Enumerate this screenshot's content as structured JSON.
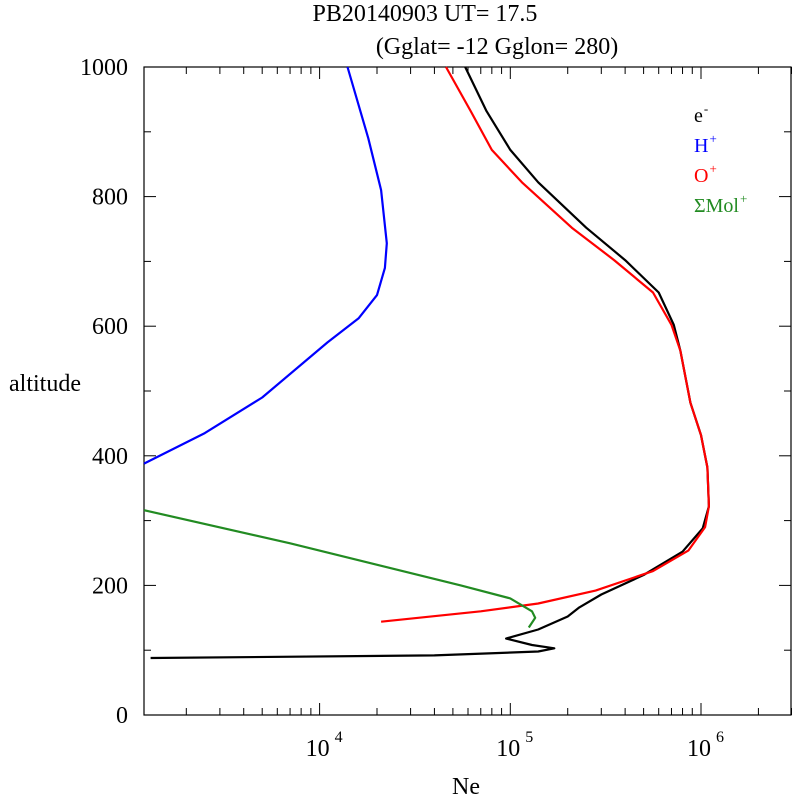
{
  "chart_data": {
    "type": "line",
    "title": "PB20140903   UT=  17.5",
    "subtitle": "(Gglat= -12   Gglon=  280)",
    "xlabel": "Ne",
    "ylabel": "altitude",
    "x_scale": "log",
    "xlim": [
      1200,
      3000000
    ],
    "ylim": [
      0,
      1000
    ],
    "y_ticks": [
      0,
      200,
      400,
      600,
      800,
      1000
    ],
    "x_ticks": [
      {
        "value": 10000,
        "base": "10",
        "exp": "4"
      },
      {
        "value": 100000,
        "base": "10",
        "exp": "5"
      },
      {
        "value": 1000000,
        "base": "10",
        "exp": "6"
      }
    ],
    "legend_position": "top-right",
    "series": [
      {
        "name": "e",
        "name_sup": "-",
        "color": "#000000",
        "points": [
          [
            1300,
            88
          ],
          [
            40000,
            92
          ],
          [
            140000,
            98
          ],
          [
            170000,
            103
          ],
          [
            130000,
            108
          ],
          [
            95000,
            118
          ],
          [
            140000,
            132
          ],
          [
            200000,
            152
          ],
          [
            230000,
            166
          ],
          [
            300000,
            186
          ],
          [
            500000,
            216
          ],
          [
            800000,
            252
          ],
          [
            1020000,
            288
          ],
          [
            1100000,
            322
          ],
          [
            1080000,
            382
          ],
          [
            1000000,
            432
          ],
          [
            880000,
            482
          ],
          [
            780000,
            562
          ],
          [
            720000,
            602
          ],
          [
            600000,
            652
          ],
          [
            400000,
            702
          ],
          [
            250000,
            752
          ],
          [
            140000,
            822
          ],
          [
            100000,
            872
          ],
          [
            75000,
            932
          ],
          [
            58000,
            1000
          ]
        ]
      },
      {
        "name": "H",
        "name_sup": "+",
        "color": "#0000ff",
        "points": [
          [
            1200,
            388
          ],
          [
            2500,
            435
          ],
          [
            5000,
            490
          ],
          [
            11000,
            575
          ],
          [
            16000,
            612
          ],
          [
            20000,
            648
          ],
          [
            22000,
            690
          ],
          [
            22500,
            728
          ],
          [
            21000,
            810
          ],
          [
            18000,
            890
          ],
          [
            14000,
            1000
          ]
        ]
      },
      {
        "name": "O",
        "name_sup": "+",
        "color": "#ff0000",
        "points": [
          [
            21000,
            144
          ],
          [
            70000,
            160
          ],
          [
            140000,
            172
          ],
          [
            280000,
            192
          ],
          [
            560000,
            222
          ],
          [
            860000,
            254
          ],
          [
            1050000,
            290
          ],
          [
            1100000,
            322
          ],
          [
            1080000,
            382
          ],
          [
            1000000,
            432
          ],
          [
            880000,
            482
          ],
          [
            780000,
            562
          ],
          [
            700000,
            602
          ],
          [
            560000,
            652
          ],
          [
            350000,
            702
          ],
          [
            210000,
            752
          ],
          [
            115000,
            822
          ],
          [
            80000,
            872
          ],
          [
            62000,
            932
          ],
          [
            46000,
            1000
          ]
        ]
      },
      {
        "name": "ΣMol",
        "name_sup": "+",
        "color": "#228b22",
        "points": [
          [
            1200,
            316
          ],
          [
            7000,
            265
          ],
          [
            55000,
            200
          ],
          [
            100000,
            180
          ],
          [
            130000,
            160
          ],
          [
            135000,
            150
          ],
          [
            125000,
            135
          ]
        ]
      }
    ]
  }
}
